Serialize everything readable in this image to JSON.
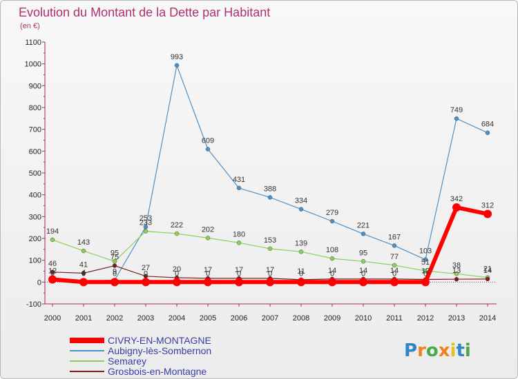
{
  "chart_data": {
    "type": "line",
    "title": "Evolution du Montant de la Dette par Habitant",
    "subtitle": "(en €)",
    "xlabel": "",
    "ylabel": "",
    "ylim": [
      -100,
      1100
    ],
    "yticks": [
      -100,
      0,
      100,
      200,
      300,
      400,
      500,
      600,
      700,
      800,
      900,
      1000,
      1100
    ],
    "categories": [
      "2000",
      "2001",
      "2002",
      "2003",
      "2004",
      "2005",
      "2006",
      "2007",
      "2008",
      "2009",
      "2010",
      "2011",
      "2012",
      "2013",
      "2014"
    ],
    "grid": false,
    "legend": "bottom-left",
    "series": [
      {
        "name": "CIVRY-EN-MONTAGNE",
        "color": "#ff0000",
        "values": [
          12,
          0,
          0,
          0,
          0,
          0,
          0,
          0,
          0,
          0,
          0,
          0,
          0,
          342,
          312
        ],
        "labels": [
          "12",
          "0",
          "0",
          "0",
          "0",
          "0",
          "0",
          "0",
          "0",
          "0",
          "0",
          "0",
          "0",
          "342",
          "312"
        ]
      },
      {
        "name": "Aubigny-lès-Sombernon",
        "color": "#4a90c8",
        "values": [
          3,
          4,
          9,
          253,
          993,
          609,
          431,
          388,
          334,
          279,
          221,
          167,
          103,
          749,
          684
        ],
        "labels": [
          "3",
          "4",
          "9",
          "253",
          "993",
          "609",
          "431",
          "388",
          "334",
          "279",
          "221",
          "167",
          "103",
          "749",
          "684"
        ]
      },
      {
        "name": "Semarey",
        "color": "#88d058",
        "values": [
          194,
          143,
          95,
          233,
          222,
          202,
          180,
          153,
          139,
          108,
          95,
          77,
          51,
          38,
          21
        ],
        "labels": [
          "194",
          "143",
          "95",
          "233",
          "222",
          "202",
          "180",
          "153",
          "139",
          "108",
          "95",
          "77",
          "51",
          "38",
          "21"
        ]
      },
      {
        "name": "Grosbois-en-Montagne",
        "color": "#7a1c1c",
        "values": [
          46,
          41,
          75,
          27,
          20,
          17,
          17,
          17,
          11,
          14,
          14,
          14,
          12,
          13,
          14
        ],
        "labels": [
          "46",
          "41",
          "75",
          "27",
          "20",
          "17",
          "17",
          "17",
          "11",
          "14",
          "14",
          "14",
          "12",
          "13",
          "14"
        ]
      }
    ]
  },
  "logo": {
    "text": "Proxiti"
  }
}
